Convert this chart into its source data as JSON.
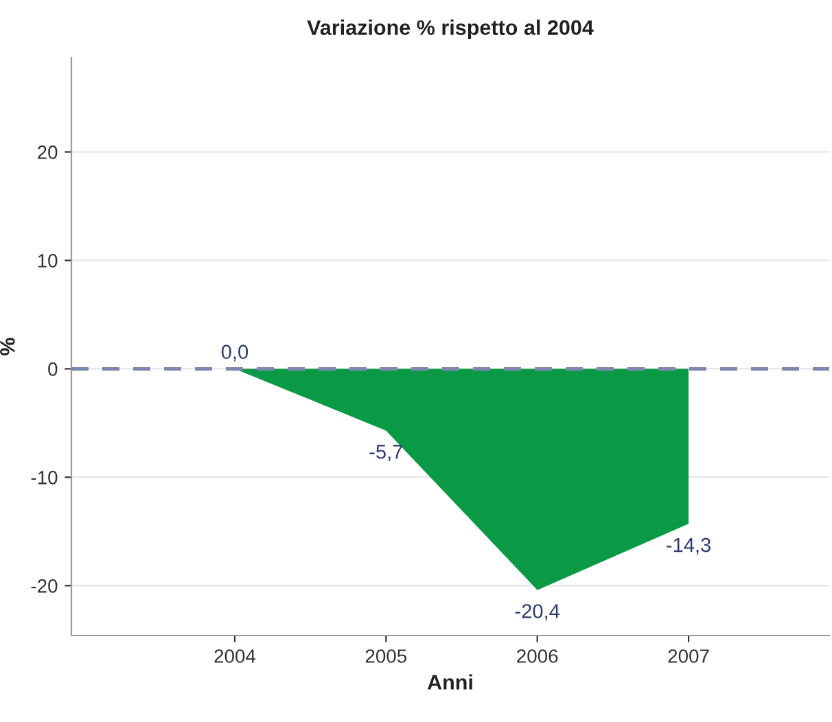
{
  "chart_data": {
    "type": "area",
    "title": "Variazione % rispetto al 2004",
    "xlabel": "Anni",
    "ylabel": "%",
    "x": [
      2004,
      2005,
      2006,
      2007
    ],
    "series": [
      {
        "color": "#0a9a45",
        "values": [
          0.0,
          -5.7,
          -20.4,
          -14.3
        ],
        "value_labels": [
          "0,0",
          "-5,7",
          "-20,4",
          "-14,3"
        ]
      }
    ],
    "xlim": [
      2002.92,
      2007.93
    ],
    "xticks": [
      2004,
      2005,
      2006,
      2007
    ],
    "ylim": [
      -24.6,
      28.7
    ],
    "yticks": [
      -20,
      -10,
      0,
      10,
      20
    ],
    "grid": "y",
    "ref_lines": [
      {
        "axis": "y",
        "value": 0,
        "color": "#7f86b0",
        "line_style": "dashed"
      }
    ]
  }
}
